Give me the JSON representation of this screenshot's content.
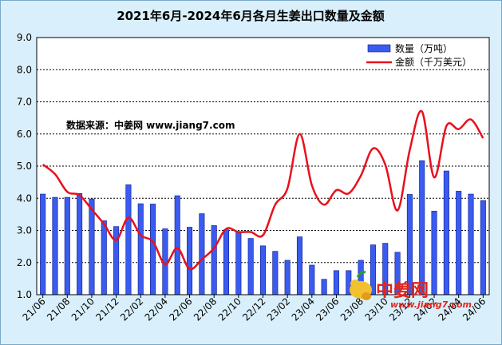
{
  "colors": {
    "bar_fill": "#3a5bf0",
    "bar_stroke": "#0a1a8a",
    "line": "#e8101c",
    "plot_bg": "#ffffff",
    "grid": "#000000"
  },
  "watermark": {
    "text": "中姜网",
    "url": "www.jiang7.com"
  },
  "chart_data": {
    "type": "bar",
    "title": "2021年6月-2024年6月各月生姜出口数量及金额",
    "source_note": "数据来源：中姜网 www.jiang7.com",
    "ylim": [
      1.0,
      9.0
    ],
    "yticks": [
      "1.0",
      "2.0",
      "3.0",
      "4.0",
      "5.0",
      "6.0",
      "7.0",
      "8.0",
      "9.0"
    ],
    "grid": true,
    "legend_position": "top-right",
    "categories": [
      "21/06",
      "21/07",
      "21/08",
      "21/09",
      "21/10",
      "21/11",
      "21/12",
      "22/01",
      "22/02",
      "22/03",
      "22/04",
      "22/05",
      "22/06",
      "22/07",
      "22/08",
      "22/09",
      "22/10",
      "22/11",
      "22/12",
      "23/01",
      "23/02",
      "23/03",
      "23/04",
      "23/05",
      "23/06",
      "23/07",
      "23/08",
      "23/09",
      "23/10",
      "23/11",
      "23/12",
      "24/01",
      "24/02",
      "24/03",
      "24/04",
      "24/05",
      "24/06"
    ],
    "xtick_labels": [
      "21/06",
      "21/08",
      "21/10",
      "21/12",
      "22/02",
      "22/04",
      "22/06",
      "22/08",
      "22/10",
      "22/12",
      "23/02",
      "23/04",
      "23/06",
      "23/08",
      "23/10",
      "23/12",
      "24/02",
      "24/04",
      "24/06"
    ],
    "series": [
      {
        "name": "数量（万吨）",
        "kind": "bar",
        "values": [
          4.13,
          4.03,
          4.03,
          4.15,
          3.98,
          3.3,
          3.12,
          4.42,
          3.83,
          3.82,
          3.05,
          4.08,
          3.1,
          3.52,
          3.15,
          3.02,
          2.95,
          2.75,
          2.52,
          2.35,
          2.07,
          2.8,
          1.92,
          1.48,
          1.75,
          1.75,
          2.07,
          2.55,
          2.6,
          2.32,
          4.12,
          5.17,
          3.6,
          4.85,
          4.22,
          4.13,
          3.93
        ]
      },
      {
        "name": "金额（千万美元）",
        "kind": "line",
        "values": [
          5.05,
          4.75,
          4.2,
          4.1,
          3.65,
          3.2,
          2.7,
          3.4,
          2.85,
          2.65,
          1.95,
          2.45,
          1.8,
          2.1,
          2.45,
          3.05,
          2.95,
          2.95,
          2.85,
          3.8,
          4.3,
          6.0,
          4.4,
          3.8,
          4.25,
          4.15,
          4.7,
          5.55,
          5.05,
          3.62,
          5.5,
          6.7,
          4.65,
          6.25,
          6.15,
          6.45,
          5.87
        ]
      }
    ]
  }
}
